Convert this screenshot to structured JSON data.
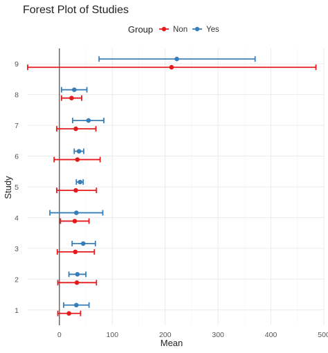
{
  "chart_data": {
    "type": "forest",
    "title": "Forest Plot of Studies",
    "xlabel": "Mean",
    "ylabel": "Study",
    "xlim": [
      -60,
      500
    ],
    "x_ticks": [
      0,
      100,
      200,
      300,
      400,
      500
    ],
    "categories": [
      "1",
      "2",
      "3",
      "4",
      "5",
      "6",
      "7",
      "8",
      "9"
    ],
    "reference_line_x": 0,
    "legend": {
      "title": "Group",
      "position": "top",
      "entries": [
        "Non",
        "Yes"
      ]
    },
    "series": [
      {
        "name": "Non",
        "color": "#e41a1c",
        "points": [
          {
            "study": "1",
            "mean": 18,
            "lower": -3,
            "upper": 40
          },
          {
            "study": "2",
            "mean": 33,
            "lower": -3,
            "upper": 70
          },
          {
            "study": "3",
            "mean": 30,
            "lower": -4,
            "upper": 66
          },
          {
            "study": "4",
            "mean": 29,
            "lower": 2,
            "upper": 56
          },
          {
            "study": "5",
            "mean": 31,
            "lower": -5,
            "upper": 70
          },
          {
            "study": "6",
            "mean": 34,
            "lower": -10,
            "upper": 77
          },
          {
            "study": "7",
            "mean": 31,
            "lower": -5,
            "upper": 69
          },
          {
            "study": "8",
            "mean": 23,
            "lower": 4,
            "upper": 42
          },
          {
            "study": "9",
            "mean": 212,
            "lower": -60,
            "upper": 485
          }
        ]
      },
      {
        "name": "Yes",
        "color": "#377eb8",
        "points": [
          {
            "study": "1",
            "mean": 32,
            "lower": 8,
            "upper": 56
          },
          {
            "study": "2",
            "mean": 34,
            "lower": 18,
            "upper": 50
          },
          {
            "study": "3",
            "mean": 45,
            "lower": 24,
            "upper": 68
          },
          {
            "study": "4",
            "mean": 32,
            "lower": -18,
            "upper": 82
          },
          {
            "study": "5",
            "mean": 39,
            "lower": 32,
            "upper": 45
          },
          {
            "study": "6",
            "mean": 37,
            "lower": 28,
            "upper": 46
          },
          {
            "study": "7",
            "mean": 55,
            "lower": 25,
            "upper": 84
          },
          {
            "study": "8",
            "mean": 28,
            "lower": 4,
            "upper": 52
          },
          {
            "study": "9",
            "mean": 222,
            "lower": 75,
            "upper": 370
          }
        ]
      }
    ]
  }
}
